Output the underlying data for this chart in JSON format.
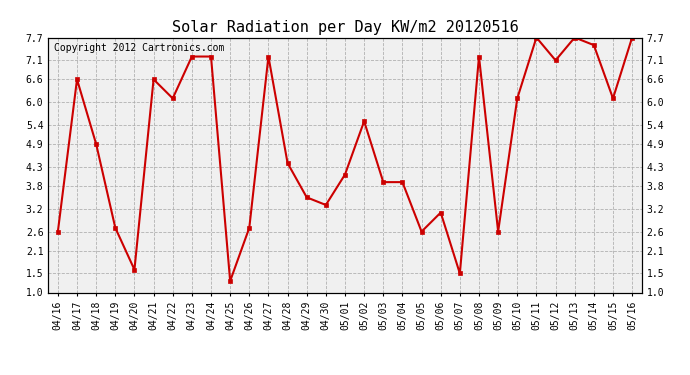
{
  "title": "Solar Radiation per Day KW/m2 20120516",
  "copyright": "Copyright 2012 Cartronics.com",
  "labels": [
    "04/16",
    "04/17",
    "04/18",
    "04/19",
    "04/20",
    "04/21",
    "04/22",
    "04/23",
    "04/24",
    "04/25",
    "04/26",
    "04/27",
    "04/28",
    "04/29",
    "04/30",
    "05/01",
    "05/02",
    "05/03",
    "05/04",
    "05/05",
    "05/06",
    "05/07",
    "05/08",
    "05/09",
    "05/10",
    "05/11",
    "05/12",
    "05/13",
    "05/14",
    "05/15",
    "05/16"
  ],
  "values": [
    2.6,
    6.6,
    4.9,
    2.7,
    1.6,
    6.6,
    6.1,
    7.2,
    7.2,
    1.3,
    2.7,
    7.2,
    4.4,
    3.5,
    3.3,
    4.1,
    5.5,
    3.9,
    3.9,
    2.6,
    3.1,
    1.5,
    7.2,
    2.6,
    6.1,
    7.7,
    7.1,
    7.7,
    7.5,
    6.1,
    7.7
  ],
  "line_color": "#cc0000",
  "marker_color": "#cc0000",
  "bg_color": "#ffffff",
  "plot_bg_color": "#f0f0f0",
  "grid_color": "#aaaaaa",
  "ylim": [
    1.0,
    7.7
  ],
  "yticks": [
    1.0,
    1.5,
    2.1,
    2.6,
    3.2,
    3.8,
    4.3,
    4.9,
    5.4,
    6.0,
    6.6,
    7.1,
    7.7
  ],
  "title_fontsize": 11,
  "copyright_fontsize": 7,
  "tick_fontsize": 7
}
